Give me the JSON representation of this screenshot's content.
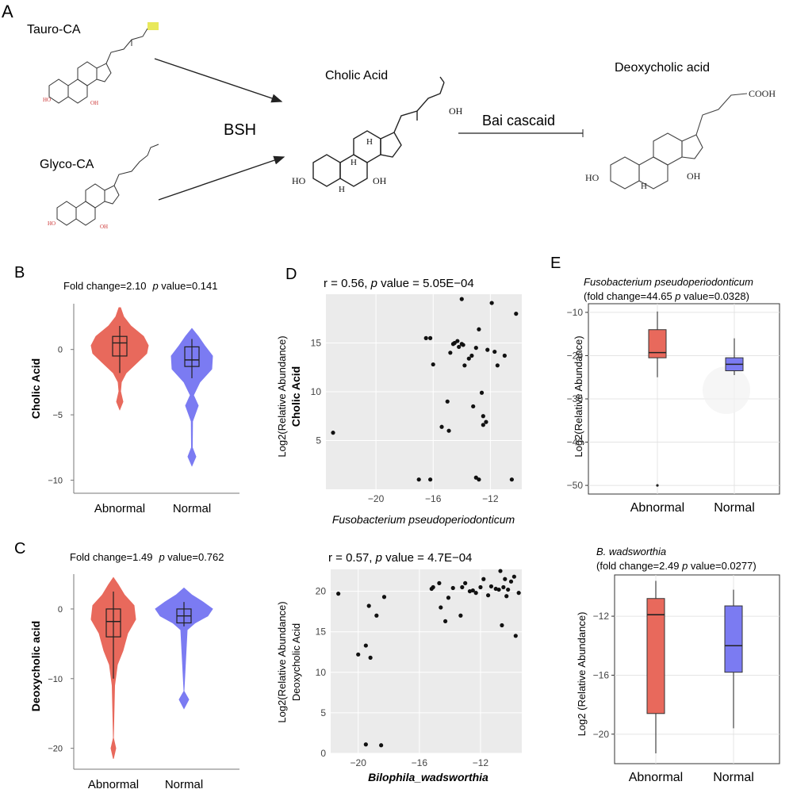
{
  "panelA": {
    "letter": "A",
    "tauro": "Tauro-CA",
    "glyco": "Glyco-CA",
    "bsh": "BSH",
    "cholic": "Cholic Acid",
    "bai": "Bai cascaid",
    "deoxy": "Deoxycholic acid",
    "oh": "OH",
    "ho": "HO",
    "h": "H",
    "cooh": "COOH"
  },
  "panelB": {
    "letter": "B",
    "fc_text": "Fold change=2.10",
    "p_label": "p",
    "p_text": " value=0.141",
    "ylabel": "Cholic Acid",
    "categories": [
      "Abnormal",
      "Normal"
    ],
    "yticks": [
      "0",
      "−5",
      "−10"
    ]
  },
  "panelC": {
    "letter": "C",
    "fc_text": "Fold change=1.49",
    "p_label": "p",
    "p_text": " value=0.762",
    "ylabel": "Deoxycholic acid",
    "categories": [
      "Abnormal",
      "Normal"
    ],
    "yticks": [
      "0",
      "−10",
      "−20"
    ]
  },
  "panelD": {
    "letter": "D",
    "top": {
      "r_text": "r = 0.56,  ",
      "p_label": "p",
      "p_text": " value = 5.05E−04",
      "ylabel1": "Log2(Relative Abundance)",
      "ylabel2": "Cholic Acid",
      "xlabel": "Fusobacterium pseudoperiodonticum",
      "xticks": [
        "−20",
        "−16",
        "−12"
      ],
      "yticks": [
        "5",
        "10",
        "15"
      ]
    },
    "bottom": {
      "r_text": "r = 0.57,  ",
      "p_label": "p",
      "p_text": " value = 4.7E−04",
      "ylabel1": "Log2(Relative Abundance)",
      "ylabel2": "Deoxycholic Acid",
      "xlabel": "Bilophila_wadsworthia",
      "xticks": [
        "−20",
        "−16",
        "−12"
      ],
      "yticks": [
        "0",
        "5",
        "10",
        "15",
        "20"
      ]
    }
  },
  "panelE": {
    "letter": "E",
    "top": {
      "title": "Fusobacterium pseudoperiodonticum",
      "fc_text": "(fold change=44.65  ",
      "p_label": "p",
      "p_text": " value=0.0328)",
      "ylabel": "Log2(Relative Abundance)",
      "categories": [
        "Abnormal",
        "Normal"
      ],
      "yticks": [
        "−10",
        "−20",
        "−30",
        "−40",
        "−50"
      ]
    },
    "bottom": {
      "title": "B. wadsworthia",
      "fc_text": "(fold change=2.49  ",
      "p_label": "p",
      "p_text": " value=0.0277)",
      "ylabel": "Log2 (Relative Abundance)",
      "categories": [
        "Abnormal",
        "Normal"
      ],
      "yticks": [
        "−12",
        "−16",
        "−20"
      ]
    }
  },
  "colors": {
    "abnormal": "#e8695c",
    "normal": "#7b7bf2",
    "grid_bg": "#ebebeb"
  },
  "chart_data": [
    {
      "type": "violin",
      "panel": "B",
      "title": "Fold change=2.10 p value=0.141",
      "ylabel": "Cholic Acid",
      "categories": [
        "Abnormal",
        "Normal"
      ],
      "ylim": [
        -11,
        3.5
      ],
      "boxes": [
        {
          "name": "Abnormal",
          "min": -1.8,
          "q1": -0.5,
          "median": 0.5,
          "q3": 1.0,
          "max": 1.8
        },
        {
          "name": "Normal",
          "min": -2.2,
          "q1": -1.3,
          "median": -0.8,
          "q3": 0.2,
          "max": 0.8
        }
      ]
    },
    {
      "type": "violin",
      "panel": "C",
      "title": "Fold change=1.49 p value=0.762",
      "ylabel": "Deoxycholic acid",
      "categories": [
        "Abnormal",
        "Normal"
      ],
      "ylim": [
        -23,
        5
      ],
      "boxes": [
        {
          "name": "Abnormal",
          "min": -10,
          "q1": -4,
          "median": -1.8,
          "q3": 0,
          "max": 2.5
        },
        {
          "name": "Normal",
          "min": -2.5,
          "q1": -2,
          "median": -1,
          "q3": 0,
          "max": 1
        }
      ]
    },
    {
      "type": "scatter",
      "panel": "D-top",
      "title": "r = 0.56, p value = 5.05E-04",
      "xlabel": "Fusobacterium pseudoperiodonticum",
      "ylabel": "Log2(Relative Abundance) Cholic Acid",
      "xlim": [
        -23.5,
        -9.8
      ],
      "ylim": [
        0,
        20
      ],
      "x": [
        -23,
        -17,
        -16.5,
        -16.2,
        -16,
        -14.8,
        -14.6,
        -14.5,
        -14.3,
        -14.2,
        -14.0,
        -14.0,
        -13.9,
        -13.8,
        -13.5,
        -13.3,
        -13.0,
        -12.8,
        -12.6,
        -12.5,
        -12.5,
        -12.3,
        -12.2,
        -11.9,
        -11.7,
        -11.5,
        -11.0,
        -10.2,
        -10.5,
        -15.4,
        -15.0,
        -14.9,
        -12.8,
        -13.2,
        -13.0,
        -16.2
      ],
      "y": [
        5.8,
        1,
        15.5,
        15.5,
        12.8,
        14,
        14.9,
        15,
        15.2,
        14.6,
        19.5,
        14.9,
        14.8,
        12.7,
        13.4,
        13.7,
        14.5,
        16.4,
        9.9,
        7.5,
        6.6,
        6.9,
        14.3,
        19.1,
        14.1,
        12.7,
        13.7,
        18,
        1,
        6.4,
        9.0,
        6.0,
        1,
        8.5,
        1.2,
        1
      ]
    },
    {
      "type": "scatter",
      "panel": "D-bottom",
      "title": "r = 0.57, p value = 4.7E-04",
      "xlabel": "Bilophila_wadsworthia",
      "ylabel": "Log2(Relative Abundance) Deoxycholic Acid",
      "xlim": [
        -21.8,
        -9.3
      ],
      "ylim": [
        0,
        22.7
      ],
      "x": [
        -21.3,
        -20,
        -19.5,
        -19.5,
        -19.3,
        -19.2,
        -18.8,
        -18.5,
        -18.3,
        -15.2,
        -15.1,
        -14.7,
        -14.6,
        -14.3,
        -14.1,
        -13.8,
        -13.3,
        -13.2,
        -13.0,
        -12.7,
        -12.5,
        -12.3,
        -12.0,
        -11.8,
        -11.5,
        -11.3,
        -11.0,
        -10.8,
        -10.7,
        -10.6,
        -10.5,
        -10.4,
        -10.3,
        -10.2,
        -10.0,
        -9.8,
        -9.7,
        -9.5
      ],
      "y": [
        19.7,
        12.2,
        13.3,
        1.1,
        18.2,
        11.8,
        17,
        1,
        19.3,
        20.3,
        20.5,
        21,
        18,
        16.3,
        19.2,
        20.4,
        17,
        20.5,
        21,
        20,
        20.1,
        19.8,
        20.5,
        21.5,
        19.5,
        20.6,
        20.3,
        20.2,
        22.5,
        15.8,
        20.5,
        21.5,
        19.4,
        20.2,
        21.2,
        21.8,
        14.5,
        19.8
      ]
    },
    {
      "type": "box",
      "panel": "E-top",
      "title": "Fusobacterium pseudoperiodonticum (fold change=44.65 p value=0.0328)",
      "ylabel": "Log2(Relative Abundance)",
      "categories": [
        "Abnormal",
        "Normal"
      ],
      "ylim": [
        -52,
        -8
      ],
      "boxes": [
        {
          "name": "Abnormal",
          "min": -25,
          "q1": -20.5,
          "median": -19.3,
          "q3": -14,
          "max": -9.8,
          "outliers": [
            -50
          ]
        },
        {
          "name": "Normal",
          "min": -24.5,
          "q1": -23.5,
          "median": -22,
          "q3": -20.5,
          "max": -16
        }
      ]
    },
    {
      "type": "box",
      "panel": "E-bottom",
      "title": "B. wadsworthia (fold change=2.49 p value=0.0277)",
      "ylabel": "Log2 (Relative Abundance)",
      "categories": [
        "Abnormal",
        "Normal"
      ],
      "ylim": [
        -22,
        -9.2
      ],
      "boxes": [
        {
          "name": "Abnormal",
          "min": -21.3,
          "q1": -18.6,
          "median": -11.9,
          "q3": -10.8,
          "max": -9.6
        },
        {
          "name": "Normal",
          "min": -19.6,
          "q1": -15.8,
          "median": -14,
          "q3": -11.3,
          "max": -10.2
        }
      ]
    }
  ]
}
